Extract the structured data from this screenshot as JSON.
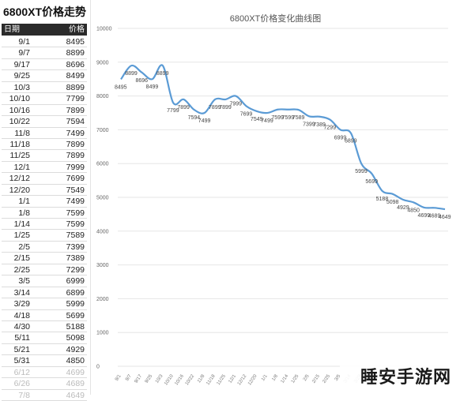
{
  "table": {
    "title": "6800XT价格走势",
    "col_date": "日期",
    "col_price": "价格",
    "rows": [
      {
        "date": "9/1",
        "price": "8495"
      },
      {
        "date": "9/7",
        "price": "8899"
      },
      {
        "date": "9/17",
        "price": "8696"
      },
      {
        "date": "9/25",
        "price": "8499"
      },
      {
        "date": "10/3",
        "price": "8899"
      },
      {
        "date": "10/10",
        "price": "7799"
      },
      {
        "date": "10/16",
        "price": "7899"
      },
      {
        "date": "10/22",
        "price": "7594"
      },
      {
        "date": "11/8",
        "price": "7499"
      },
      {
        "date": "11/18",
        "price": "7899"
      },
      {
        "date": "11/25",
        "price": "7899"
      },
      {
        "date": "12/1",
        "price": "7999"
      },
      {
        "date": "12/12",
        "price": "7699"
      },
      {
        "date": "12/20",
        "price": "7549"
      },
      {
        "date": "1/1",
        "price": "7499"
      },
      {
        "date": "1/8",
        "price": "7599"
      },
      {
        "date": "1/14",
        "price": "7599"
      },
      {
        "date": "1/25",
        "price": "7589"
      },
      {
        "date": "2/5",
        "price": "7399"
      },
      {
        "date": "2/15",
        "price": "7389"
      },
      {
        "date": "2/25",
        "price": "7299"
      },
      {
        "date": "3/5",
        "price": "6999"
      },
      {
        "date": "3/14",
        "price": "6899"
      },
      {
        "date": "3/29",
        "price": "5999"
      },
      {
        "date": "4/18",
        "price": "5699"
      },
      {
        "date": "4/30",
        "price": "5188"
      },
      {
        "date": "5/11",
        "price": "5098"
      },
      {
        "date": "5/21",
        "price": "4929"
      },
      {
        "date": "5/31",
        "price": "4850"
      },
      {
        "date": "6/12",
        "price": "4699"
      },
      {
        "date": "6/26",
        "price": "4689"
      },
      {
        "date": "7/8",
        "price": "4649"
      }
    ]
  },
  "watermark": "睡安手游网",
  "chart_data": {
    "type": "line",
    "title": "6800XT价格变化曲线图",
    "xlabel": "",
    "ylabel": "",
    "ylim": [
      0,
      10000
    ],
    "yticks": [
      "0",
      "1000",
      "2000",
      "3000",
      "4000",
      "5000",
      "6000",
      "7000",
      "8000",
      "9000",
      "10000"
    ],
    "grid": true,
    "legend": "none",
    "line_color": "#5b9bd5",
    "categories": [
      "9/1",
      "9/7",
      "9/17",
      "9/25",
      "10/3",
      "10/10",
      "10/16",
      "10/22",
      "11/8",
      "11/18",
      "11/25",
      "12/1",
      "12/12",
      "12/20",
      "1/1",
      "1/8",
      "1/14",
      "1/25",
      "2/5",
      "2/15",
      "2/25",
      "3/5",
      "3/14",
      "3/29",
      "4/18",
      "4/30",
      "5/11",
      "5/21",
      "5/31",
      "6/12",
      "6/26",
      "7/8"
    ],
    "values": [
      8495,
      8899,
      8696,
      8499,
      8899,
      7799,
      7899,
      7594,
      7499,
      7899,
      7899,
      7999,
      7699,
      7549,
      7499,
      7599,
      7599,
      7589,
      7399,
      7389,
      7299,
      6999,
      6899,
      5999,
      5699,
      5188,
      5098,
      4929,
      4850,
      4699,
      4689,
      4649
    ]
  }
}
